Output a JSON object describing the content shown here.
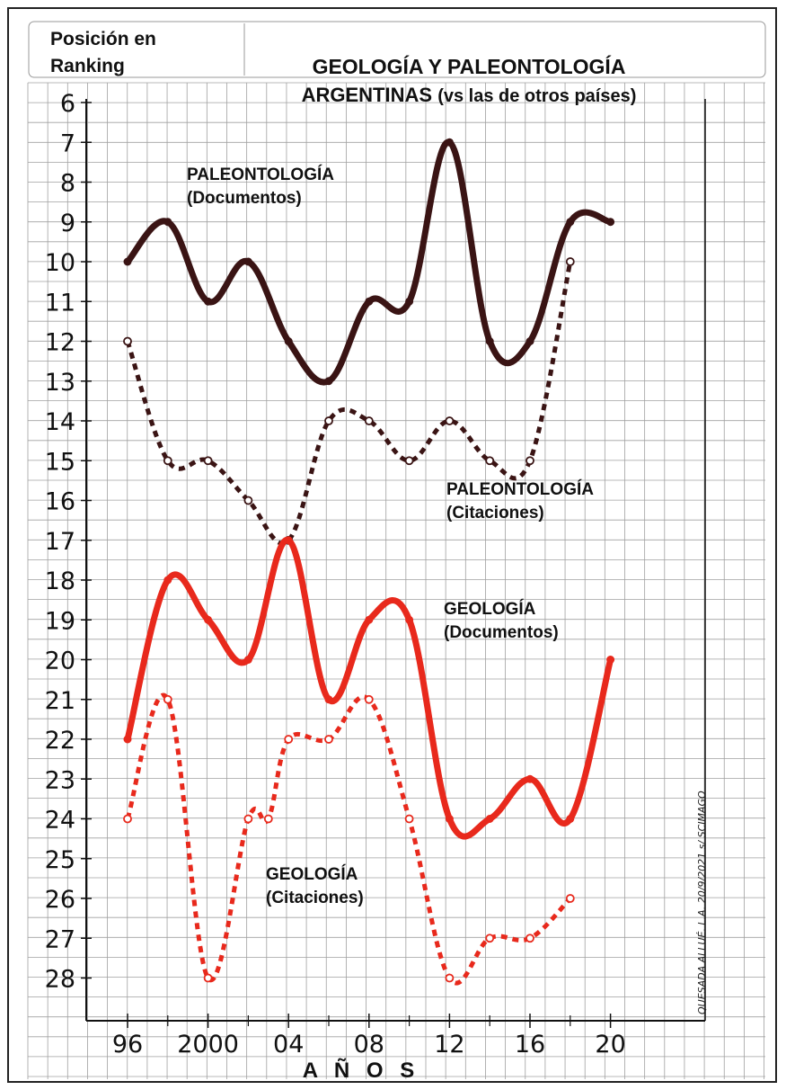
{
  "header": {
    "ranking_label_line1": "Posición en",
    "ranking_label_line2": "Ranking",
    "title_line1": "GEOLOGÍA Y PALEONTOLOGÍA",
    "title_line2_bold": "ARGENTINAS",
    "title_line2_rest": "(vs las de otros países)"
  },
  "signature": "QUESADA ALLUÉ. L.A. 20/9/2021 s/ SCIMAGO",
  "colors": {
    "paleo": "#3a1414",
    "geo": "#e8291c",
    "grid": "#a0a0a0"
  },
  "chart_data": {
    "type": "line",
    "title": "GEOLOGÍA Y PALEONTOLOGÍA ARGENTINAS (vs las de otros países)",
    "ylabel": "Posición en Ranking",
    "xlabel": "A Ñ O S",
    "y_inverted": true,
    "ylim": [
      6,
      28
    ],
    "xlim": [
      1996,
      2020
    ],
    "y_ticks": [
      "6",
      "7",
      "8",
      "9",
      "10",
      "11",
      "12",
      "13",
      "14",
      "15",
      "16",
      "17",
      "18",
      "19",
      "20",
      "21",
      "22",
      "23",
      "24",
      "25",
      "26",
      "27",
      "28"
    ],
    "x_ticks": [
      {
        "value": 1996,
        "label": "96"
      },
      {
        "value": 2000,
        "label": "2000"
      },
      {
        "value": 2004,
        "label": "04"
      },
      {
        "value": 2008,
        "label": "08"
      },
      {
        "value": 2012,
        "label": "12"
      },
      {
        "value": 2016,
        "label": "16"
      },
      {
        "value": 2020,
        "label": "20"
      }
    ],
    "series": [
      {
        "name_line1": "PALEONTOLOGÍA",
        "name_line2": "(Documentos)",
        "style": "solid",
        "color": "#3a1414",
        "x": [
          1996,
          1998,
          2000,
          2002,
          2004,
          2006,
          2008,
          2010,
          2012,
          2014,
          2016,
          2018,
          2020
        ],
        "y": [
          10,
          9,
          11,
          10,
          12,
          13,
          11,
          11,
          7,
          12,
          12,
          9,
          9
        ]
      },
      {
        "name_line1": "PALEONTOLOGÍA",
        "name_line2": "(Citaciones)",
        "style": "dashed",
        "color": "#3a1414",
        "x": [
          1996,
          1998,
          2000,
          2002,
          2004,
          2006,
          2008,
          2010,
          2012,
          2014,
          2016,
          2018
        ],
        "y": [
          12,
          15,
          15,
          16,
          17,
          14,
          14,
          15,
          14,
          15,
          15,
          10
        ]
      },
      {
        "name_line1": "GEOLOGÍA",
        "name_line2": "(Documentos)",
        "style": "solid",
        "color": "#e8291c",
        "x": [
          1996,
          1998,
          2000,
          2002,
          2004,
          2006,
          2008,
          2010,
          2012,
          2014,
          2016,
          2018,
          2020
        ],
        "y": [
          22,
          18,
          19,
          20,
          17,
          21,
          19,
          19,
          24,
          24,
          23,
          24,
          20
        ]
      },
      {
        "name_line1": "GEOLOGÍA",
        "name_line2": "(Citaciones)",
        "style": "dashed",
        "color": "#e8291c",
        "x": [
          1996,
          1998,
          2000,
          2002,
          2003,
          2004,
          2006,
          2008,
          2010,
          2012,
          2014,
          2016,
          2018
        ],
        "y": [
          24,
          21,
          28,
          24,
          24,
          22,
          22,
          21,
          24,
          28,
          27,
          27,
          26
        ]
      }
    ]
  }
}
